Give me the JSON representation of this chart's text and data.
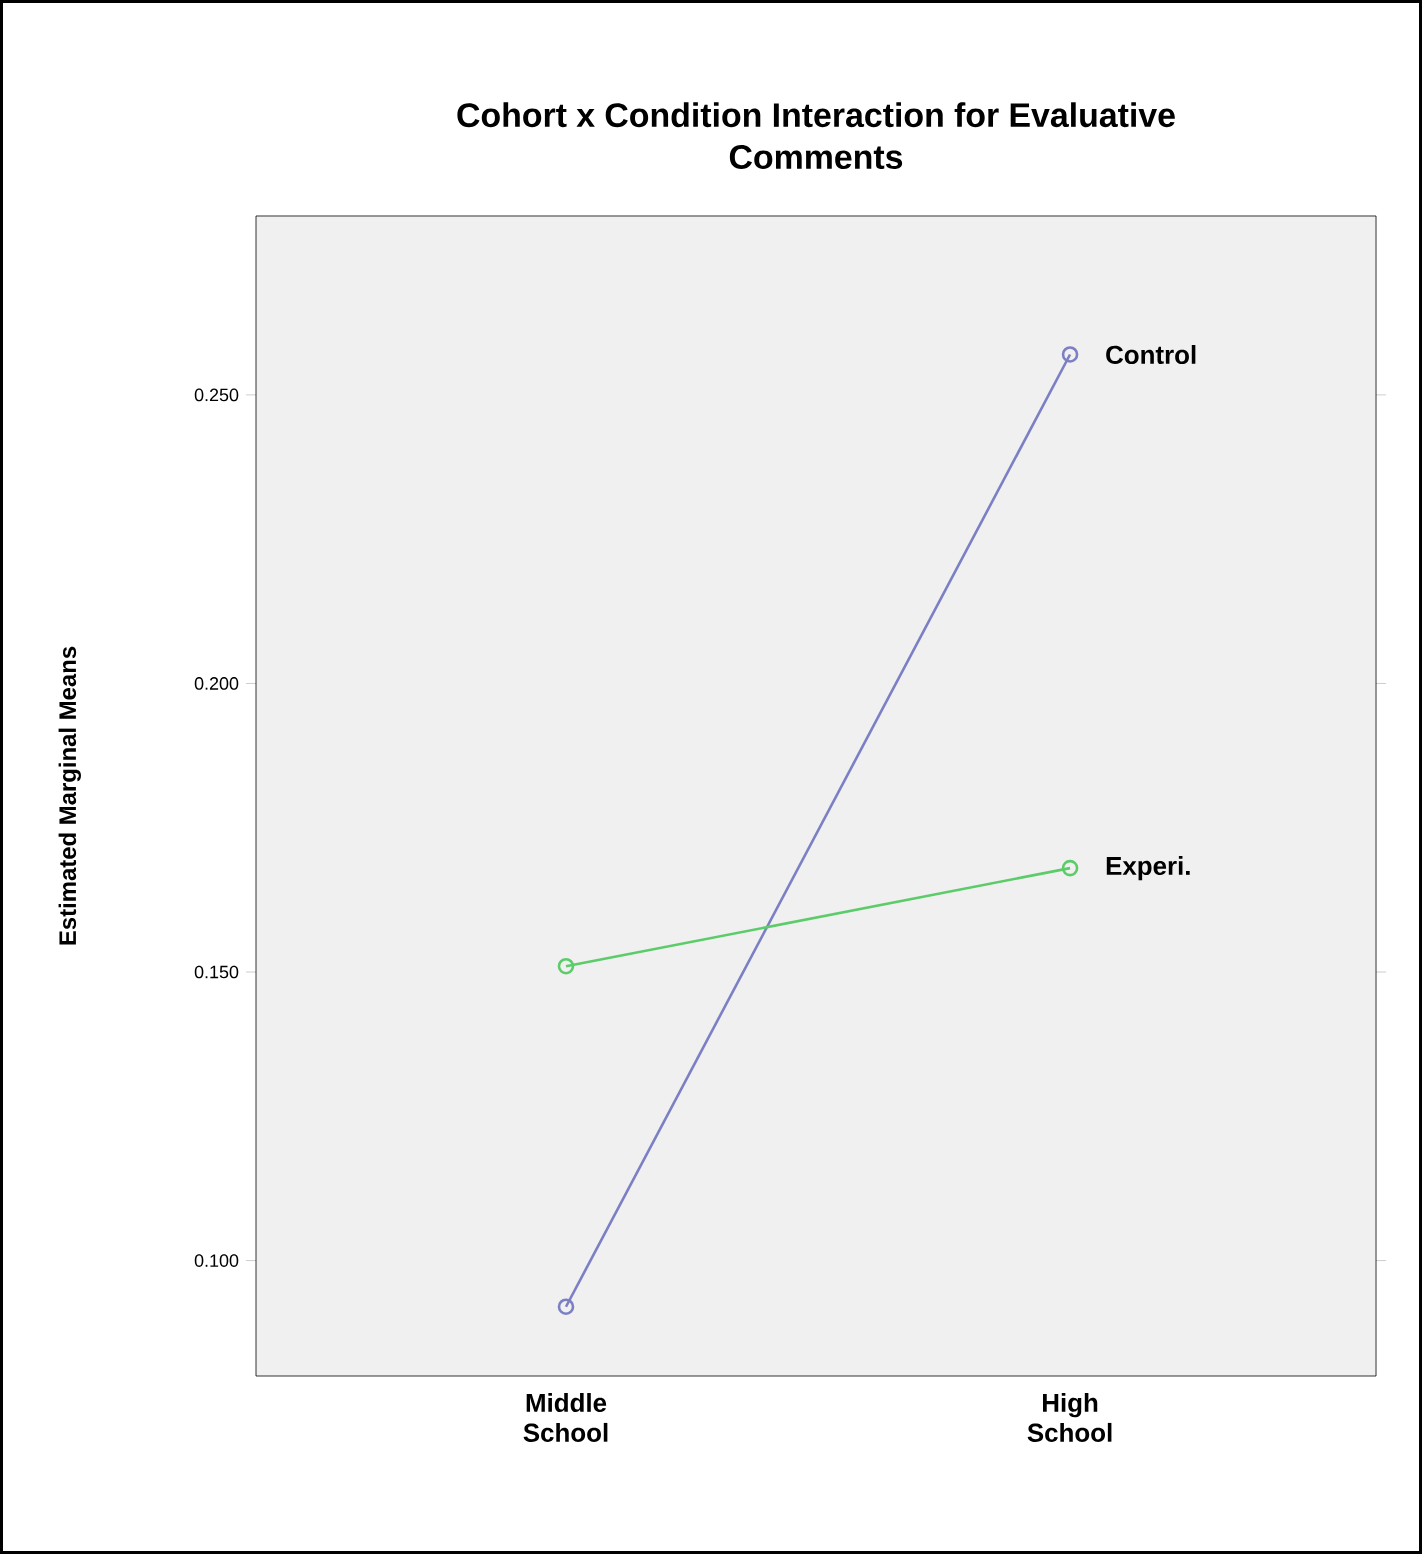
{
  "chart_data": {
    "type": "line",
    "title": "Cohort x Condition Interaction for Evaluative Comments",
    "ylabel": "Estimated Marginal Means",
    "categories": [
      "Middle School",
      "High School"
    ],
    "series": [
      {
        "name": "Control",
        "color": "#7b7fc4",
        "values": [
          0.092,
          0.257
        ]
      },
      {
        "name": "Experi.",
        "color": "#5ccc6a",
        "values": [
          0.151,
          0.168
        ]
      }
    ],
    "ylim": [
      0.08,
      0.281
    ],
    "yticks": [
      {
        "value": 0.1,
        "label": "0.100"
      },
      {
        "value": 0.15,
        "label": "0.150"
      },
      {
        "value": 0.2,
        "label": "0.200"
      },
      {
        "value": 0.25,
        "label": "0.250"
      }
    ],
    "grid": false,
    "legend": false,
    "marker": "circle",
    "line_style": "solid"
  }
}
